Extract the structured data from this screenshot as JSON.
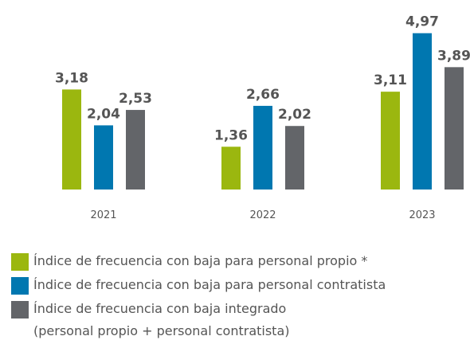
{
  "chart_data": {
    "type": "bar",
    "categories": [
      "2021",
      "2022",
      "2023"
    ],
    "series": [
      {
        "name": "Índice de frecuencia con baja para personal propio *",
        "color": "#9bb70f",
        "values": [
          3.18,
          1.36,
          3.11
        ],
        "value_labels": [
          "3,18",
          "1,36",
          "3,11"
        ]
      },
      {
        "name": "Índice de frecuencia con baja para personal contratista",
        "color": "#0077b0",
        "values": [
          2.04,
          2.66,
          4.97
        ],
        "value_labels": [
          "2,04",
          "2,66",
          "4,97"
        ]
      },
      {
        "name": "Índice de frecuencia con baja integrado\n(personal propio + personal contratista)",
        "color": "#636569",
        "values": [
          2.53,
          2.02,
          3.89
        ],
        "value_labels": [
          "2,53",
          "2,02",
          "3,89"
        ]
      }
    ]
  }
}
